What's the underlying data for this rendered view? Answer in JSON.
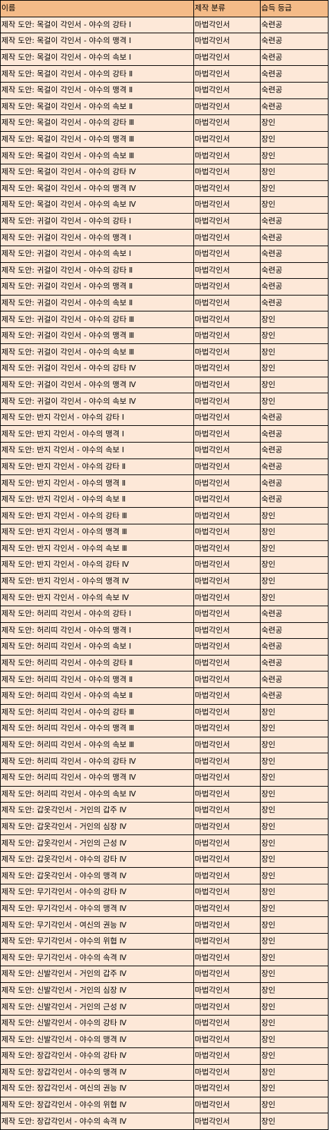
{
  "header": {
    "name": "이름",
    "category": "제작 분류",
    "grade": "습득 등급"
  },
  "rows": [
    {
      "name": "제작 도안: 목걸이 각인서 - 야수의 강타 Ⅰ",
      "category": "마법각인서",
      "grade": "숙련공"
    },
    {
      "name": "제작 도안: 목걸이 각인서 - 야수의 맹격 Ⅰ",
      "category": "마법각인서",
      "grade": "숙련공"
    },
    {
      "name": "제작 도안: 목걸이 각인서 - 야수의 속보 Ⅰ",
      "category": "마법각인서",
      "grade": "숙련공"
    },
    {
      "name": "제작 도안: 목걸이 각인서 - 야수의 강타 Ⅱ",
      "category": "마법각인서",
      "grade": "숙련공"
    },
    {
      "name": "제작 도안: 목걸이 각인서 - 야수의 맹격 Ⅱ",
      "category": "마법각인서",
      "grade": "숙련공"
    },
    {
      "name": "제작 도안: 목걸이 각인서 - 야수의 속보 Ⅱ",
      "category": "마법각인서",
      "grade": "숙련공"
    },
    {
      "name": "제작 도안: 목걸이 각인서 - 야수의 강타 Ⅲ",
      "category": "마법각인서",
      "grade": "장인"
    },
    {
      "name": "제작 도안: 목걸이 각인서 - 야수의 맹격 Ⅲ",
      "category": "마법각인서",
      "grade": "장인"
    },
    {
      "name": "제작 도안: 목걸이 각인서 - 야수의 속보 Ⅲ",
      "category": "마법각인서",
      "grade": "장인"
    },
    {
      "name": "제작 도안: 목걸이 각인서 - 야수의 강타 Ⅳ",
      "category": "마법각인서",
      "grade": "장인"
    },
    {
      "name": "제작 도안: 목걸이 각인서 - 야수의 맹격 Ⅳ",
      "category": "마법각인서",
      "grade": "장인"
    },
    {
      "name": "제작 도안: 목걸이 각인서 - 야수의 속보 Ⅳ",
      "category": "마법각인서",
      "grade": "장인"
    },
    {
      "name": "제작 도안: 귀걸이 각인서 - 야수의 강타 Ⅰ",
      "category": "마법각인서",
      "grade": "숙련공"
    },
    {
      "name": "제작 도안: 귀걸이 각인서 - 야수의 맹격 Ⅰ",
      "category": "마법각인서",
      "grade": "숙련공"
    },
    {
      "name": "제작 도안: 귀걸이 각인서 - 야수의 속보 Ⅰ",
      "category": "마법각인서",
      "grade": "숙련공"
    },
    {
      "name": "제작 도안: 귀걸이 각인서 - 야수의 강타 Ⅱ",
      "category": "마법각인서",
      "grade": "숙련공"
    },
    {
      "name": "제작 도안: 귀걸이 각인서 - 야수의 맹격 Ⅱ",
      "category": "마법각인서",
      "grade": "숙련공"
    },
    {
      "name": "제작 도안: 귀걸이 각인서 - 야수의 속보 Ⅱ",
      "category": "마법각인서",
      "grade": "숙련공"
    },
    {
      "name": "제작 도안: 귀걸이 각인서 - 야수의 강타 Ⅲ",
      "category": "마법각인서",
      "grade": "장인"
    },
    {
      "name": "제작 도안: 귀걸이 각인서 - 야수의 맹격 Ⅲ",
      "category": "마법각인서",
      "grade": "장인"
    },
    {
      "name": "제작 도안: 귀걸이 각인서 - 야수의 속보 Ⅲ",
      "category": "마법각인서",
      "grade": "장인"
    },
    {
      "name": "제작 도안: 귀걸이 각인서 - 야수의 강타 Ⅳ",
      "category": "마법각인서",
      "grade": "장인"
    },
    {
      "name": "제작 도안: 귀걸이 각인서 - 야수의 맹격 Ⅳ",
      "category": "마법각인서",
      "grade": "장인"
    },
    {
      "name": "제작 도안: 귀걸이 각인서 - 야수의 속보 Ⅳ",
      "category": "마법각인서",
      "grade": "장인"
    },
    {
      "name": "제작 도안: 반지 각인서 - 야수의 강타 Ⅰ",
      "category": "마법각인서",
      "grade": "숙련공"
    },
    {
      "name": "제작 도안: 반지 각인서 - 야수의 맹격 Ⅰ",
      "category": "마법각인서",
      "grade": "숙련공"
    },
    {
      "name": "제작 도안: 반지 각인서 - 야수의 속보 Ⅰ",
      "category": "마법각인서",
      "grade": "숙련공"
    },
    {
      "name": "제작 도안: 반지 각인서 - 야수의 강타 Ⅱ",
      "category": "마법각인서",
      "grade": "숙련공"
    },
    {
      "name": "제작 도안: 반지 각인서 - 야수의 맹격 Ⅱ",
      "category": "마법각인서",
      "grade": "숙련공"
    },
    {
      "name": "제작 도안: 반지 각인서 - 야수의 속보 Ⅱ",
      "category": "마법각인서",
      "grade": "숙련공"
    },
    {
      "name": "제작 도안: 반지 각인서 - 야수의 강타 Ⅲ",
      "category": "마법각인서",
      "grade": "장인"
    },
    {
      "name": "제작 도안: 반지 각인서 - 야수의 맹격 Ⅲ",
      "category": "마법각인서",
      "grade": "장인"
    },
    {
      "name": "제작 도안: 반지 각인서 - 야수의 속보 Ⅲ",
      "category": "마법각인서",
      "grade": "장인"
    },
    {
      "name": "제작 도안: 반지 각인서 - 야수의 강타 Ⅳ",
      "category": "마법각인서",
      "grade": "장인"
    },
    {
      "name": "제작 도안: 반지 각인서 - 야수의 맹격 Ⅳ",
      "category": "마법각인서",
      "grade": "장인"
    },
    {
      "name": "제작 도안: 반지 각인서 - 야수의 속보 Ⅳ",
      "category": "마법각인서",
      "grade": "장인"
    },
    {
      "name": "제작 도안: 허리띠 각인서 - 야수의 강타 Ⅰ",
      "category": "마법각인서",
      "grade": "숙련공"
    },
    {
      "name": "제작 도안: 허리띠 각인서 - 야수의 맹격 Ⅰ",
      "category": "마법각인서",
      "grade": "숙련공"
    },
    {
      "name": "제작 도안: 허리띠 각인서 - 야수의 속보 Ⅰ",
      "category": "마법각인서",
      "grade": "숙련공"
    },
    {
      "name": "제작 도안: 허리띠 각인서 - 야수의 강타 Ⅱ",
      "category": "마법각인서",
      "grade": "숙련공"
    },
    {
      "name": "제작 도안: 허리띠 각인서 - 야수의 맹격 Ⅱ",
      "category": "마법각인서",
      "grade": "숙련공"
    },
    {
      "name": "제작 도안: 허리띠 각인서 - 야수의 속보 Ⅱ",
      "category": "마법각인서",
      "grade": "숙련공"
    },
    {
      "name": "제작 도안: 허리띠 각인서 - 야수의 강타 Ⅲ",
      "category": "마법각인서",
      "grade": "장인"
    },
    {
      "name": "제작 도안: 허리띠 각인서 - 야수의 맹격 Ⅲ",
      "category": "마법각인서",
      "grade": "장인"
    },
    {
      "name": "제작 도안: 허리띠 각인서 - 야수의 속보 Ⅲ",
      "category": "마법각인서",
      "grade": "장인"
    },
    {
      "name": "제작 도안: 허리띠 각인서 - 야수의 강타 Ⅳ",
      "category": "마법각인서",
      "grade": "장인"
    },
    {
      "name": "제작 도안: 허리띠 각인서 - 야수의 맹격 Ⅳ",
      "category": "마법각인서",
      "grade": "장인"
    },
    {
      "name": "제작 도안: 허리띠 각인서 - 야수의 속보 Ⅳ",
      "category": "마법각인서",
      "grade": "장인"
    },
    {
      "name": "제작 도안: 갑옷각인서 - 거인의 갑주 Ⅳ",
      "category": "마법각인서",
      "grade": "장인"
    },
    {
      "name": "제작 도안: 갑옷각인서 - 거인의 심장 Ⅳ",
      "category": "마법각인서",
      "grade": "장인"
    },
    {
      "name": "제작 도안: 갑옷각인서 - 거인의 근성 Ⅳ",
      "category": "마법각인서",
      "grade": "장인"
    },
    {
      "name": "제작 도안: 갑옷각인서 - 야수의 강타 Ⅳ",
      "category": "마법각인서",
      "grade": "장인"
    },
    {
      "name": "제작 도안: 갑옷각인서 - 야수의 맹격 Ⅳ",
      "category": "마법각인서",
      "grade": "장인"
    },
    {
      "name": "제작 도안: 무기각인서 - 야수의 강타 Ⅳ",
      "category": "마법각인서",
      "grade": "장인"
    },
    {
      "name": "제작 도안: 무기각인서 - 야수의 맹격 Ⅳ",
      "category": "마법각인서",
      "grade": "장인"
    },
    {
      "name": "제작 도안: 무기각인서 - 여신의 권능 Ⅳ",
      "category": "마법각인서",
      "grade": "장인"
    },
    {
      "name": "제작 도안: 무기각인서 - 야수의 위협 Ⅳ",
      "category": "마법각인서",
      "grade": "장인"
    },
    {
      "name": "제작 도안: 무기각인서 - 야수의 속격 Ⅳ",
      "category": "마법각인서",
      "grade": "장인"
    },
    {
      "name": "제작 도안: 신발각인서 - 거인의 갑주 Ⅳ",
      "category": "마법각인서",
      "grade": "장인"
    },
    {
      "name": "제작 도안: 신발각인서 - 거인의 심장 Ⅳ",
      "category": "마법각인서",
      "grade": "장인"
    },
    {
      "name": "제작 도안: 신발각인서 - 거인의 근성 Ⅳ",
      "category": "마법각인서",
      "grade": "장인"
    },
    {
      "name": "제작 도안: 신발각인서 - 야수의 강타 Ⅳ",
      "category": "마법각인서",
      "grade": "장인"
    },
    {
      "name": "제작 도안: 신발각인서 - 야수의 맹격 Ⅳ",
      "category": "마법각인서",
      "grade": "장인"
    },
    {
      "name": "제작 도안: 장갑각인서 - 야수의 강타 Ⅳ",
      "category": "마법각인서",
      "grade": "장인"
    },
    {
      "name": "제작 도안: 장갑각인서 - 야수의 맹격 Ⅳ",
      "category": "마법각인서",
      "grade": "장인"
    },
    {
      "name": "제작 도안: 장갑각인서 - 여신의 권능 Ⅳ",
      "category": "마법각인서",
      "grade": "장인"
    },
    {
      "name": "제작 도안: 장갑각인서 - 야수의 위협 Ⅳ",
      "category": "마법각인서",
      "grade": "장인"
    },
    {
      "name": "제작 도안: 장갑각인서 - 야수의 속격 Ⅳ",
      "category": "마법각인서",
      "grade": "장인"
    }
  ],
  "colors": {
    "header_background": "#f4bb88",
    "row_background": "#fde8d8",
    "border": "#000000"
  }
}
